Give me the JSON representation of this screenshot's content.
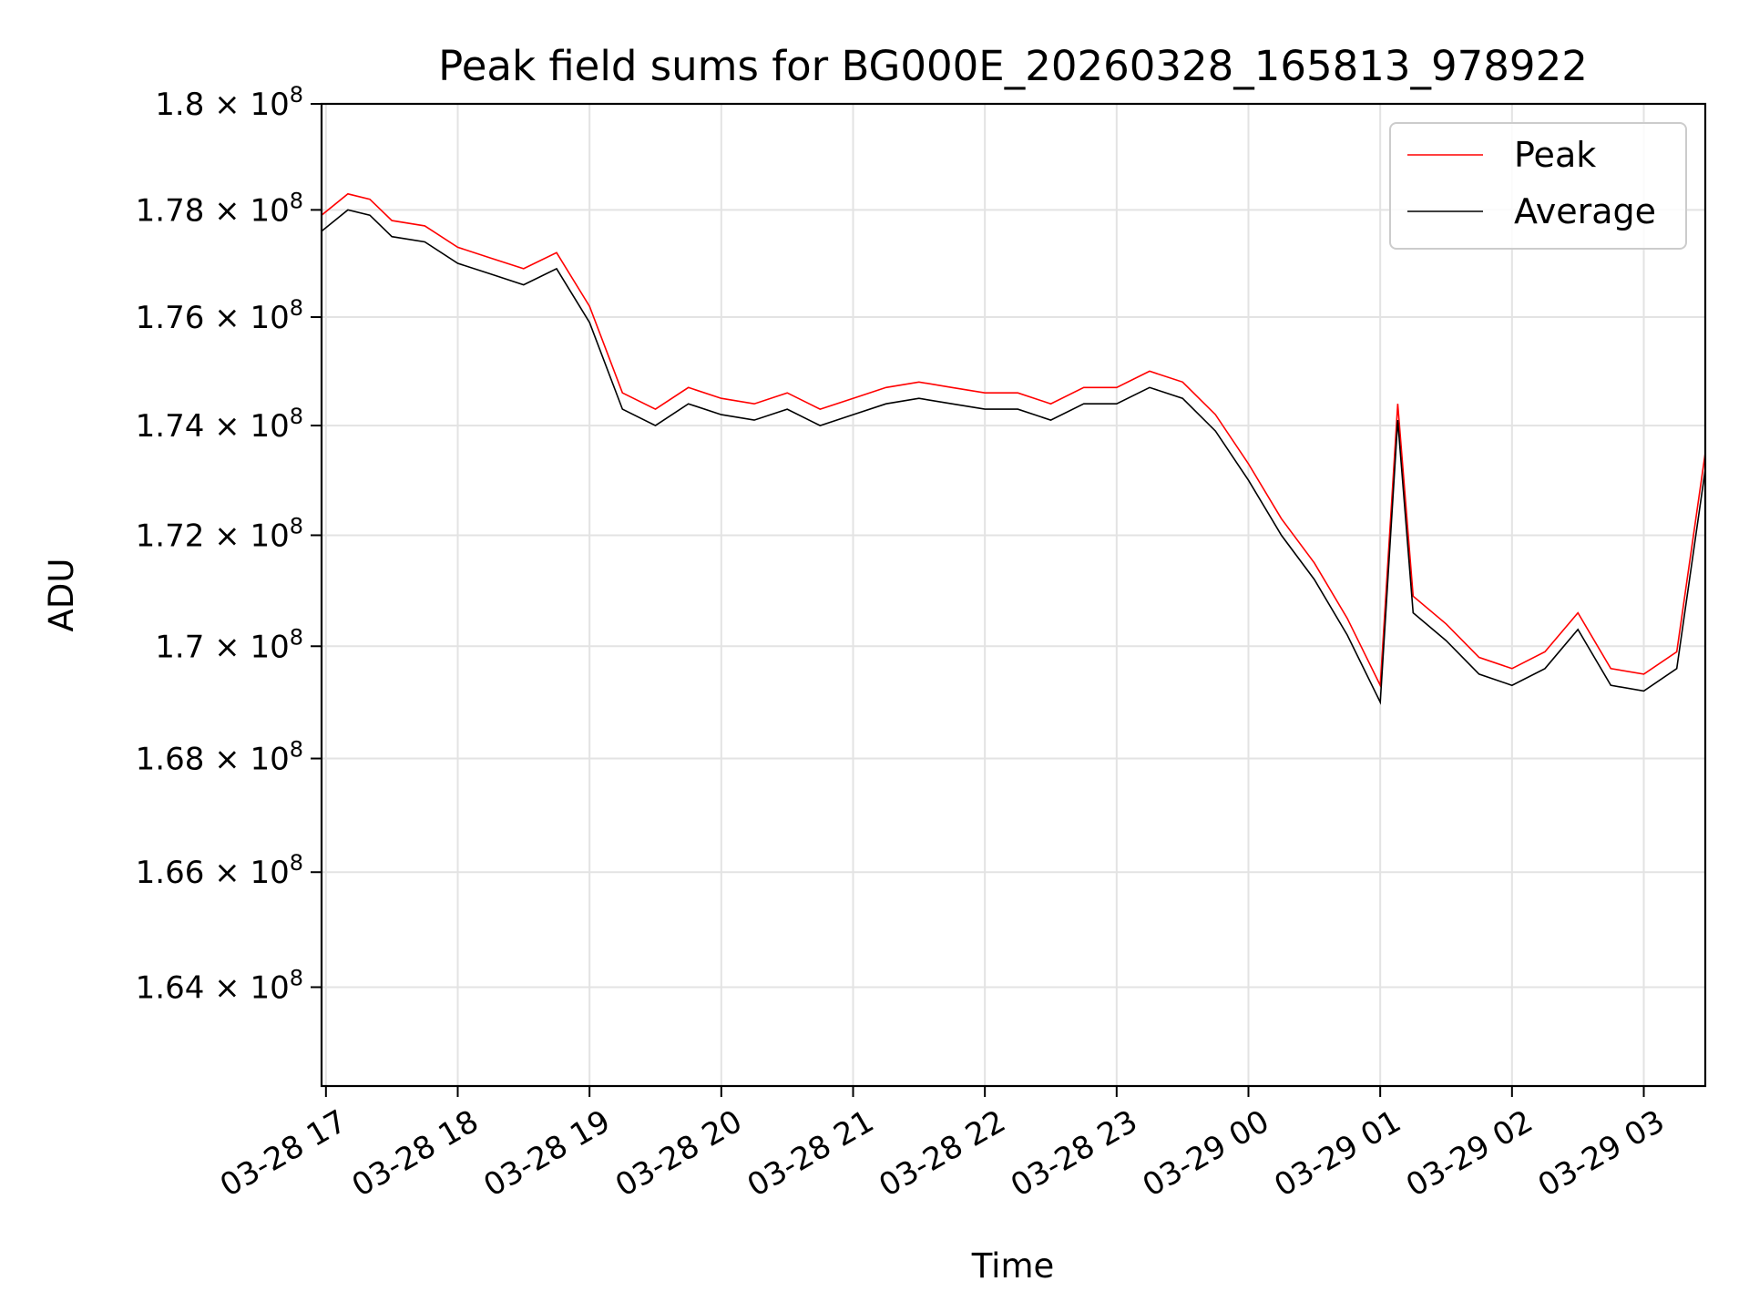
{
  "chart_data": {
    "type": "line",
    "title": "Peak field sums for BG000E_20260328_165813_978922",
    "xlabel": "Time",
    "ylabel": "ADU",
    "xlim": [
      "2026-03-28 16:58",
      "2026-03-29 03:28"
    ],
    "ylim": [
      162300000,
      180000000
    ],
    "x_tick_labels": [
      "03-28 17",
      "03-28 18",
      "03-28 19",
      "03-28 20",
      "03-28 21",
      "03-28 22",
      "03-28 23",
      "03-29 00",
      "03-29 01",
      "03-29 02",
      "03-29 03"
    ],
    "x_ticks": [
      "2026-03-28 17:00",
      "2026-03-28 18:00",
      "2026-03-28 19:00",
      "2026-03-28 20:00",
      "2026-03-28 21:00",
      "2026-03-28 22:00",
      "2026-03-28 23:00",
      "2026-03-29 00:00",
      "2026-03-29 01:00",
      "2026-03-29 02:00",
      "2026-03-29 03:00"
    ],
    "y_ticks": [
      164000000,
      166000000,
      168000000,
      170000000,
      172000000,
      174000000,
      176000000,
      178000000,
      180000000
    ],
    "y_tick_mantissas": [
      "1.64",
      "1.66",
      "1.68",
      "1.7",
      "1.72",
      "1.74",
      "1.76",
      "1.78",
      "1.8"
    ],
    "y_tick_exponent": "8",
    "y_scale": "log",
    "grid": true,
    "legend_position": "top-right",
    "series": [
      {
        "name": "Peak",
        "color": "#ff0000",
        "x": [
          "2026-03-28 16:58",
          "2026-03-28 17:10",
          "2026-03-28 17:20",
          "2026-03-28 17:30",
          "2026-03-28 17:45",
          "2026-03-28 18:00",
          "2026-03-28 18:15",
          "2026-03-28 18:30",
          "2026-03-28 18:45",
          "2026-03-28 19:00",
          "2026-03-28 19:15",
          "2026-03-28 19:30",
          "2026-03-28 19:45",
          "2026-03-28 20:00",
          "2026-03-28 20:15",
          "2026-03-28 20:30",
          "2026-03-28 20:45",
          "2026-03-28 21:00",
          "2026-03-28 21:15",
          "2026-03-28 21:30",
          "2026-03-28 21:45",
          "2026-03-28 22:00",
          "2026-03-28 22:15",
          "2026-03-28 22:30",
          "2026-03-28 22:45",
          "2026-03-28 23:00",
          "2026-03-28 23:15",
          "2026-03-28 23:30",
          "2026-03-28 23:45",
          "2026-03-29 00:00",
          "2026-03-29 00:15",
          "2026-03-29 00:30",
          "2026-03-29 00:45",
          "2026-03-29 01:00",
          "2026-03-29 01:08",
          "2026-03-29 01:15",
          "2026-03-29 01:30",
          "2026-03-29 01:45",
          "2026-03-29 02:00",
          "2026-03-29 02:15",
          "2026-03-29 02:30",
          "2026-03-29 02:45",
          "2026-03-29 03:00",
          "2026-03-29 03:15",
          "2026-03-29 03:28"
        ],
        "y": [
          177900000,
          178300000,
          178200000,
          177800000,
          177700000,
          177300000,
          177100000,
          176900000,
          177200000,
          176200000,
          174600000,
          174300000,
          174700000,
          174500000,
          174400000,
          174600000,
          174300000,
          174500000,
          174700000,
          174800000,
          174700000,
          174600000,
          174600000,
          174400000,
          174700000,
          174700000,
          175000000,
          174800000,
          174200000,
          173300000,
          172300000,
          171500000,
          170500000,
          169300000,
          174400000,
          170900000,
          170400000,
          169800000,
          169600000,
          169900000,
          170600000,
          169600000,
          169500000,
          169900000,
          173500000
        ]
      },
      {
        "name": "Average",
        "color": "#000000",
        "x": [
          "2026-03-28 16:58",
          "2026-03-28 17:10",
          "2026-03-28 17:20",
          "2026-03-28 17:30",
          "2026-03-28 17:45",
          "2026-03-28 18:00",
          "2026-03-28 18:15",
          "2026-03-28 18:30",
          "2026-03-28 18:45",
          "2026-03-28 19:00",
          "2026-03-28 19:15",
          "2026-03-28 19:30",
          "2026-03-28 19:45",
          "2026-03-28 20:00",
          "2026-03-28 20:15",
          "2026-03-28 20:30",
          "2026-03-28 20:45",
          "2026-03-28 21:00",
          "2026-03-28 21:15",
          "2026-03-28 21:30",
          "2026-03-28 21:45",
          "2026-03-28 22:00",
          "2026-03-28 22:15",
          "2026-03-28 22:30",
          "2026-03-28 22:45",
          "2026-03-28 23:00",
          "2026-03-28 23:15",
          "2026-03-28 23:30",
          "2026-03-28 23:45",
          "2026-03-29 00:00",
          "2026-03-29 00:15",
          "2026-03-29 00:30",
          "2026-03-29 00:45",
          "2026-03-29 01:00",
          "2026-03-29 01:08",
          "2026-03-29 01:15",
          "2026-03-29 01:30",
          "2026-03-29 01:45",
          "2026-03-29 02:00",
          "2026-03-29 02:15",
          "2026-03-29 02:30",
          "2026-03-29 02:45",
          "2026-03-29 03:00",
          "2026-03-29 03:15",
          "2026-03-29 03:28"
        ],
        "y": [
          177600000,
          178000000,
          177900000,
          177500000,
          177400000,
          177000000,
          176800000,
          176600000,
          176900000,
          175900000,
          174300000,
          174000000,
          174400000,
          174200000,
          174100000,
          174300000,
          174000000,
          174200000,
          174400000,
          174500000,
          174400000,
          174300000,
          174300000,
          174100000,
          174400000,
          174400000,
          174700000,
          174500000,
          173900000,
          173000000,
          172000000,
          171200000,
          170200000,
          169000000,
          174100000,
          170600000,
          170100000,
          169500000,
          169300000,
          169600000,
          170300000,
          169300000,
          169200000,
          169600000,
          173200000
        ]
      }
    ]
  }
}
